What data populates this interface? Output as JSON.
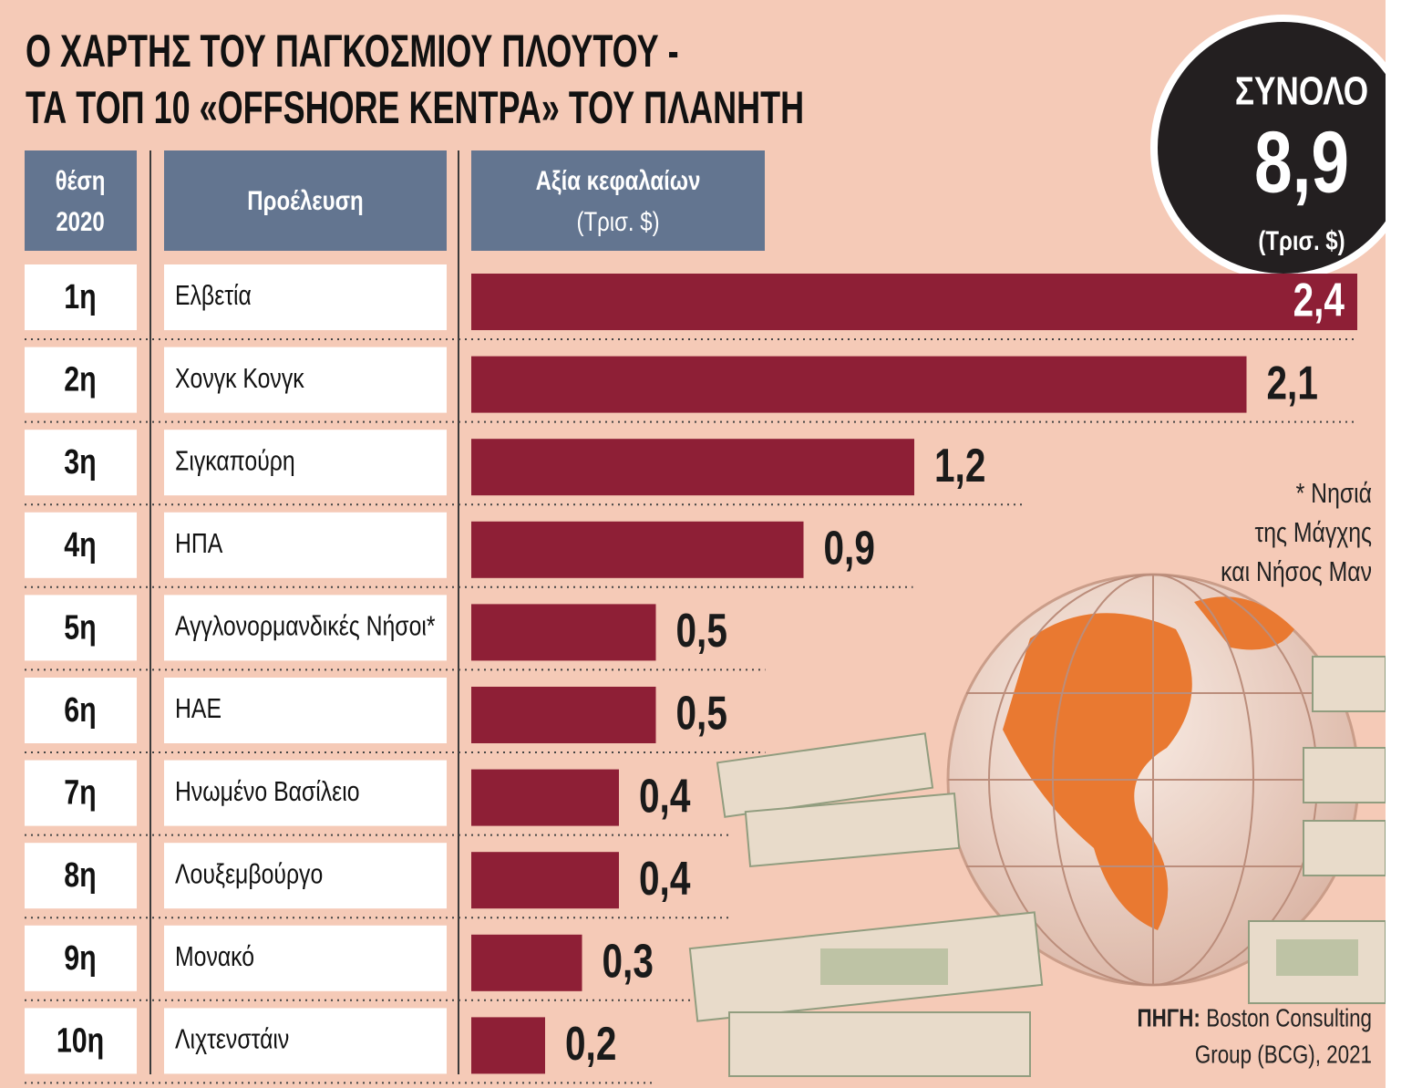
{
  "chart_data": {
    "type": "bar",
    "title": [
      "Ο ΧΑΡΤΗΣ ΤΟΥ ΠΑΓΚΟΣΜΙΟΥ ΠΛΟΥΤΟΥ -",
      "ΤΑ ΤΟΠ 10 «OFFSHORE ΚΕΝΤΡΑ» ΤΟΥ ΠΛΑΝΗΤΗ"
    ],
    "headers": {
      "rank": [
        "θέση",
        "2020"
      ],
      "origin": "Προέλευση",
      "value": [
        "Αξία κεφαλαίων",
        "(Τρισ. $)"
      ]
    },
    "ranks": [
      "1η",
      "2η",
      "3η",
      "4η",
      "5η",
      "6η",
      "7η",
      "8η",
      "9η",
      "10η"
    ],
    "categories": [
      "Ελβετία",
      "Χονγκ Κονγκ",
      "Σιγκαπούρη",
      "ΗΠΑ",
      "Αγγλονορμανδικές Νήσοι*",
      "ΗΑΕ",
      "Ηνωμένο Βασίλειο",
      "Λουξεμβούργο",
      "Μονακό",
      "Λιχτενστάιν"
    ],
    "values": [
      2.4,
      2.1,
      1.2,
      0.9,
      0.5,
      0.5,
      0.4,
      0.4,
      0.3,
      0.2
    ],
    "value_labels": [
      "2,4",
      "2,1",
      "1,2",
      "0,9",
      "0,5",
      "0,5",
      "0,4",
      "0,4",
      "0,3",
      "0,2"
    ],
    "color": "#8e1f36",
    "total": {
      "label": "ΣΥΝΟΛΟ",
      "value": 8.9,
      "value_label": "8,9",
      "unit": "(Τρισ. $)"
    },
    "note": [
      "* Νησιά",
      "της Μάγχης",
      "και Νήσος Μαν"
    ],
    "source": {
      "label": "ΠΗΓΗ:",
      "lines": [
        "Boston Consulting",
        "Group (BCG), 2021"
      ]
    }
  }
}
